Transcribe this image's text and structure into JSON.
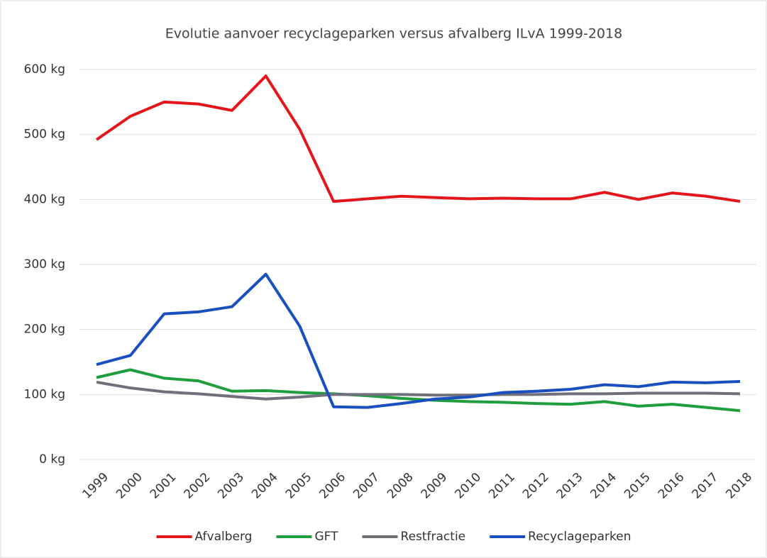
{
  "chart_data": {
    "type": "line",
    "title": "Evolutie aanvoer recyclageparken versus afvalberg ILvA 1999-2018",
    "categories": [
      "1999",
      "2000",
      "2001",
      "2002",
      "2003",
      "2004",
      "2005",
      "2006",
      "2007",
      "2008",
      "2009",
      "2010",
      "2011",
      "2012",
      "2013",
      "2014",
      "2015",
      "2016",
      "2017",
      "2018"
    ],
    "series": [
      {
        "name": "Afvalberg",
        "color": "#e3161b",
        "values": [
          492,
          528,
          550,
          547,
          537,
          590,
          508,
          397,
          401,
          405,
          403,
          401,
          402,
          401,
          401,
          411,
          400,
          410,
          405,
          397
        ]
      },
      {
        "name": "GFT",
        "color": "#1e9e3c",
        "values": [
          126,
          138,
          125,
          121,
          105,
          106,
          103,
          101,
          98,
          94,
          91,
          89,
          88,
          86,
          85,
          89,
          82,
          85,
          80,
          75
        ]
      },
      {
        "name": "Restfractie",
        "color": "#6f7079",
        "values": [
          119,
          110,
          104,
          101,
          97,
          93,
          96,
          100,
          100,
          100,
          99,
          99,
          100,
          100,
          101,
          101,
          102,
          102,
          102,
          101
        ]
      },
      {
        "name": "Recyclageparken",
        "color": "#1a4fbf",
        "values": [
          146,
          160,
          224,
          227,
          235,
          285,
          205,
          81,
          80,
          86,
          93,
          96,
          103,
          105,
          108,
          115,
          112,
          119,
          118,
          120
        ]
      }
    ],
    "ylim": [
      0,
      600
    ],
    "yticks": [
      {
        "value": 0,
        "label": "0 kg"
      },
      {
        "value": 100,
        "label": "100 kg"
      },
      {
        "value": 200,
        "label": "200 kg"
      },
      {
        "value": 300,
        "label": "300 kg"
      },
      {
        "value": 400,
        "label": "400 kg"
      },
      {
        "value": 500,
        "label": "500 kg"
      },
      {
        "value": 600,
        "label": "600 kg"
      }
    ],
    "grid": true,
    "legend": "bottom"
  }
}
